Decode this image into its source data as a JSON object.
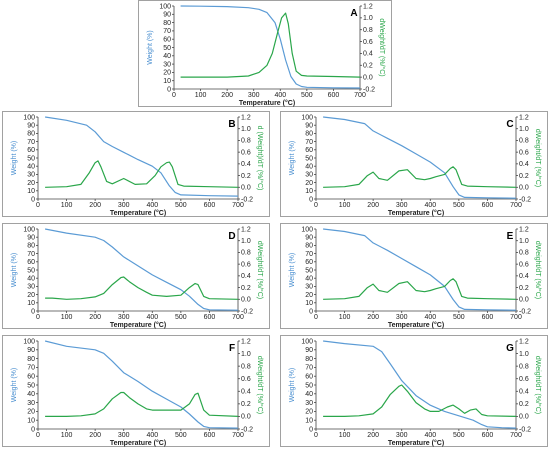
{
  "chart_data": [
    {
      "type": "line",
      "panel_label": "A",
      "xlabel": "Temperature (°C)",
      "ylabel_left": "Weight (%)",
      "ylabel_right": "dWeight/dT (%/°C)",
      "xlim": [
        0,
        700
      ],
      "xticks": [
        0,
        100,
        200,
        300,
        400,
        500,
        600,
        700
      ],
      "ylim_left": [
        0,
        100
      ],
      "yticks_left": [
        0,
        10,
        20,
        30,
        40,
        50,
        60,
        70,
        80,
        90,
        100
      ],
      "ylim_right": [
        -0.2,
        1.2
      ],
      "yticks_right": [
        "-0.2",
        "0.0",
        "0.2",
        "0.4",
        "0.6",
        "0.8",
        "1.0",
        "1.2"
      ],
      "series": [
        {
          "axis": "left",
          "color": "#5b9bd5",
          "x": [
            25,
            100,
            200,
            280,
            320,
            350,
            380,
            400,
            420,
            440,
            460,
            480,
            500,
            600,
            700
          ],
          "y": [
            100,
            99.8,
            99.3,
            98,
            96,
            92,
            80,
            60,
            35,
            15,
            6,
            3,
            2,
            1.5,
            1.2
          ]
        },
        {
          "axis": "right",
          "color": "#2aa64a",
          "x": [
            25,
            100,
            200,
            280,
            320,
            350,
            370,
            390,
            405,
            420,
            430,
            445,
            460,
            480,
            500,
            600,
            700
          ],
          "y": [
            0,
            0,
            0,
            0.02,
            0.08,
            0.2,
            0.4,
            0.75,
            1.0,
            1.08,
            0.9,
            0.4,
            0.1,
            0.03,
            0.02,
            0.01,
            0
          ]
        }
      ]
    },
    {
      "type": "line",
      "panel_label": "B",
      "xlabel": "Temperature (°C)",
      "ylabel_left": "Weight (%)",
      "ylabel_right": "d (Weight)/dT (%/°C)",
      "xlim": [
        0,
        700
      ],
      "xticks": [
        0,
        100,
        200,
        300,
        400,
        500,
        600,
        700
      ],
      "ylim_left": [
        0,
        100
      ],
      "yticks_left": [
        0,
        10,
        20,
        30,
        40,
        50,
        60,
        70,
        80,
        90,
        100
      ],
      "ylim_right": [
        -0.2,
        1.2
      ],
      "yticks_right": [
        "-0.2",
        "0.0",
        "0.2",
        "0.4",
        "0.6",
        "0.8",
        "1.0",
        "1.2"
      ],
      "series": [
        {
          "axis": "left",
          "color": "#5b9bd5",
          "x": [
            25,
            100,
            170,
            200,
            230,
            260,
            300,
            350,
            400,
            430,
            460,
            480,
            500,
            600,
            700
          ],
          "y": [
            100,
            96,
            90,
            82,
            70,
            64,
            57,
            48,
            40,
            32,
            16,
            8,
            5,
            4,
            3.5
          ]
        },
        {
          "axis": "right",
          "color": "#2aa64a",
          "x": [
            25,
            100,
            150,
            180,
            200,
            210,
            220,
            240,
            260,
            300,
            340,
            380,
            410,
            430,
            450,
            460,
            470,
            490,
            510,
            600,
            700
          ],
          "y": [
            0,
            0.01,
            0.05,
            0.25,
            0.42,
            0.45,
            0.35,
            0.1,
            0.06,
            0.15,
            0.05,
            0.06,
            0.2,
            0.35,
            0.42,
            0.43,
            0.35,
            0.05,
            0.02,
            0.01,
            0
          ]
        }
      ]
    },
    {
      "type": "line",
      "panel_label": "C",
      "xlabel": "Temperature (°C)",
      "ylabel_left": "Weight (%)",
      "ylabel_right": "dWeight/dT (%/°C)",
      "xlim": [
        0,
        700
      ],
      "xticks": [
        0,
        100,
        200,
        300,
        400,
        500,
        600,
        700
      ],
      "ylim_left": [
        0,
        100
      ],
      "yticks_left": [
        0,
        10,
        20,
        30,
        40,
        50,
        60,
        70,
        80,
        90,
        100
      ],
      "ylim_right": [
        -0.2,
        1.2
      ],
      "yticks_right": [
        "-0.2",
        "0.0",
        "0.2",
        "0.4",
        "0.6",
        "0.8",
        "1.0",
        "1.2"
      ],
      "series": [
        {
          "axis": "left",
          "color": "#5b9bd5",
          "x": [
            25,
            100,
            170,
            200,
            250,
            300,
            350,
            400,
            450,
            480,
            500,
            520,
            600,
            700
          ],
          "y": [
            100,
            97,
            92,
            83,
            74,
            65,
            55,
            45,
            32,
            15,
            5,
            2,
            1.5,
            1
          ]
        },
        {
          "axis": "right",
          "color": "#2aa64a",
          "x": [
            25,
            100,
            150,
            180,
            200,
            220,
            250,
            290,
            320,
            350,
            380,
            400,
            420,
            450,
            470,
            480,
            490,
            510,
            530,
            600,
            700
          ],
          "y": [
            0,
            0.01,
            0.05,
            0.2,
            0.26,
            0.15,
            0.12,
            0.28,
            0.3,
            0.15,
            0.13,
            0.15,
            0.18,
            0.22,
            0.32,
            0.35,
            0.3,
            0.05,
            0.02,
            0.01,
            0
          ]
        }
      ]
    },
    {
      "type": "line",
      "panel_label": "D",
      "xlabel": "Temperature (°C)",
      "ylabel_left": "Weight (%)",
      "ylabel_right": "dWeight/dT (%/°C)",
      "xlim": [
        0,
        700
      ],
      "xticks": [
        0,
        100,
        200,
        300,
        400,
        500,
        600,
        700
      ],
      "ylim_left": [
        0,
        100
      ],
      "yticks_left": [
        0,
        10,
        20,
        30,
        40,
        50,
        60,
        70,
        80,
        90,
        100
      ],
      "ylim_right": [
        -0.2,
        1.2
      ],
      "yticks_right": [
        "-0.2",
        "0.0",
        "0.2",
        "0.4",
        "0.6",
        "0.8",
        "1.0",
        "1.2"
      ],
      "series": [
        {
          "axis": "left",
          "color": "#5b9bd5",
          "x": [
            25,
            100,
            200,
            230,
            260,
            300,
            350,
            400,
            450,
            500,
            530,
            560,
            580,
            600,
            700
          ],
          "y": [
            100,
            95,
            90,
            86,
            78,
            66,
            55,
            44,
            35,
            26,
            18,
            8,
            3,
            1.5,
            1
          ]
        },
        {
          "axis": "right",
          "color": "#2aa64a",
          "x": [
            25,
            50,
            100,
            150,
            200,
            230,
            260,
            290,
            300,
            320,
            350,
            380,
            400,
            450,
            500,
            530,
            550,
            560,
            580,
            600,
            700
          ],
          "y": [
            0.02,
            0.02,
            0,
            0.01,
            0.04,
            0.1,
            0.25,
            0.37,
            0.38,
            0.3,
            0.2,
            0.12,
            0.07,
            0.05,
            0.07,
            0.2,
            0.27,
            0.25,
            0.05,
            0.01,
            0
          ]
        }
      ]
    },
    {
      "type": "line",
      "panel_label": "E",
      "xlabel": "Temperature (°C)",
      "ylabel_left": "Weight (%)",
      "ylabel_right": "dWeight/dT (%/°C)",
      "xlim": [
        0,
        700
      ],
      "xticks": [
        0,
        100,
        200,
        300,
        400,
        500,
        600,
        700
      ],
      "ylim_left": [
        0,
        100
      ],
      "yticks_left": [
        0,
        10,
        20,
        30,
        40,
        50,
        60,
        70,
        80,
        90,
        100
      ],
      "ylim_right": [
        -0.2,
        1.2
      ],
      "yticks_right": [
        "-0.2",
        "0.0",
        "0.2",
        "0.4",
        "0.6",
        "0.8",
        "1.0",
        "1.2"
      ],
      "series": [
        {
          "axis": "left",
          "color": "#5b9bd5",
          "x": [
            25,
            100,
            170,
            200,
            250,
            300,
            350,
            400,
            450,
            480,
            500,
            520,
            600,
            700
          ],
          "y": [
            100,
            97,
            92,
            83,
            74,
            64,
            54,
            44,
            30,
            14,
            5,
            2,
            1.5,
            1
          ]
        },
        {
          "axis": "right",
          "color": "#2aa64a",
          "x": [
            25,
            100,
            150,
            180,
            200,
            220,
            250,
            290,
            320,
            350,
            380,
            400,
            420,
            450,
            470,
            480,
            490,
            510,
            530,
            600,
            700
          ],
          "y": [
            0,
            0.01,
            0.05,
            0.2,
            0.26,
            0.15,
            0.12,
            0.27,
            0.3,
            0.15,
            0.13,
            0.15,
            0.18,
            0.22,
            0.32,
            0.35,
            0.3,
            0.05,
            0.02,
            0.01,
            0
          ]
        }
      ]
    },
    {
      "type": "line",
      "panel_label": "F",
      "xlabel": "Temperature (°C)",
      "ylabel_left": "Weight (%)",
      "ylabel_right": "dWeight/dT (%/°C)",
      "xlim": [
        0,
        700
      ],
      "xticks": [
        0,
        100,
        200,
        300,
        400,
        500,
        600,
        700
      ],
      "ylim_left": [
        0,
        100
      ],
      "yticks_left": [
        0,
        10,
        20,
        30,
        40,
        50,
        60,
        70,
        80,
        90,
        100
      ],
      "ylim_right": [
        -0.2,
        1.2
      ],
      "yticks_right": [
        "-0.2",
        "0.0",
        "0.2",
        "0.4",
        "0.6",
        "0.8",
        "1.0",
        "1.2"
      ],
      "series": [
        {
          "axis": "left",
          "color": "#5b9bd5",
          "x": [
            25,
            100,
            200,
            230,
            260,
            300,
            350,
            400,
            450,
            500,
            530,
            560,
            580,
            600,
            700
          ],
          "y": [
            100,
            94,
            90,
            86,
            77,
            64,
            54,
            43,
            34,
            25,
            17,
            8,
            3,
            1.5,
            1
          ]
        },
        {
          "axis": "right",
          "color": "#2aa64a",
          "x": [
            25,
            100,
            150,
            200,
            230,
            260,
            290,
            300,
            320,
            350,
            380,
            400,
            450,
            500,
            530,
            550,
            560,
            580,
            600,
            700
          ],
          "y": [
            0,
            0,
            0.01,
            0.04,
            0.12,
            0.28,
            0.38,
            0.38,
            0.3,
            0.2,
            0.12,
            0.1,
            0.1,
            0.1,
            0.2,
            0.35,
            0.37,
            0.1,
            0.02,
            0
          ]
        }
      ]
    },
    {
      "type": "line",
      "panel_label": "G",
      "xlabel": "Temperature (°C)",
      "ylabel_left": "Weight (%)",
      "ylabel_right": "dWeight/dT (%/°C)",
      "xlim": [
        0,
        700
      ],
      "xticks": [
        0,
        100,
        200,
        300,
        400,
        500,
        600,
        700
      ],
      "ylim_left": [
        0,
        100
      ],
      "yticks_left": [
        0,
        10,
        20,
        30,
        40,
        50,
        60,
        70,
        80,
        90,
        100
      ],
      "ylim_right": [
        -0.2,
        1.2
      ],
      "yticks_right": [
        "-0.2",
        "0.0",
        "0.2",
        "0.4",
        "0.6",
        "0.8",
        "1.0",
        "1.2"
      ],
      "series": [
        {
          "axis": "left",
          "color": "#5b9bd5",
          "x": [
            25,
            100,
            200,
            230,
            260,
            300,
            350,
            400,
            450,
            500,
            550,
            580,
            600,
            650,
            700
          ],
          "y": [
            100,
            97,
            94,
            88,
            74,
            55,
            38,
            27,
            20,
            15,
            10,
            5,
            2.5,
            1.5,
            1
          ]
        },
        {
          "axis": "right",
          "color": "#2aa64a",
          "x": [
            25,
            100,
            150,
            200,
            230,
            260,
            290,
            300,
            320,
            350,
            380,
            400,
            430,
            460,
            480,
            500,
            520,
            540,
            560,
            580,
            600,
            700
          ],
          "y": [
            0,
            0,
            0.01,
            0.04,
            0.15,
            0.35,
            0.48,
            0.5,
            0.4,
            0.22,
            0.12,
            0.08,
            0.08,
            0.15,
            0.18,
            0.12,
            0.05,
            0.1,
            0.12,
            0.03,
            0.01,
            0
          ]
        }
      ]
    }
  ]
}
